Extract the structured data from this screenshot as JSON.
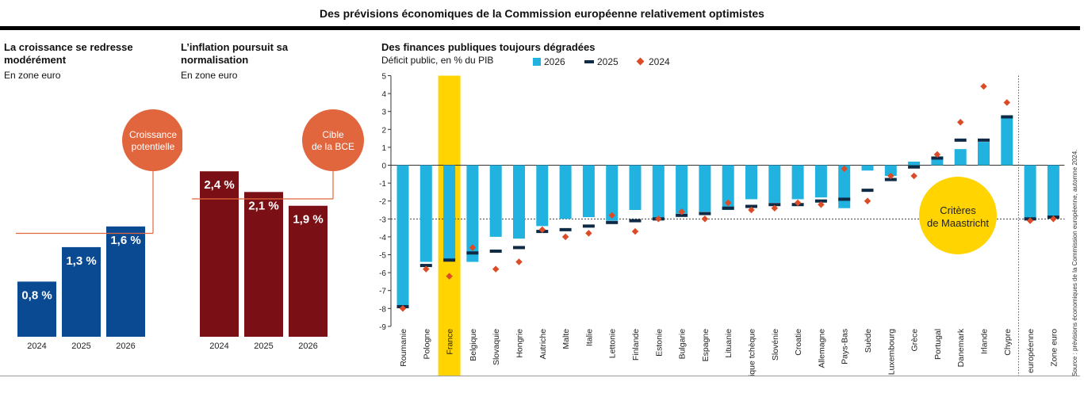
{
  "title": "Des prévisions économiques de la Commission européenne relativement optimistes",
  "source": "Source : prévisions économiques de la Commission européenne, automne 2024.",
  "colors": {
    "growth": "#0a4a93",
    "inflation": "#7a1016",
    "bar2026": "#21b2df",
    "mark2025": "#0e2a45",
    "dot2024": "#dc4b27",
    "callout": "#e2663d",
    "highlight": "#ffd400"
  },
  "panels": [
    {
      "title": "La croissance se redresse modérément",
      "subtitle": "En zone euro",
      "callout": [
        "Croissance",
        "potentielle"
      ],
      "chart_data": {
        "type": "bar",
        "categories": [
          "2024",
          "2025",
          "2026"
        ],
        "values": [
          0.8,
          1.3,
          1.6
        ],
        "labels": [
          "0,8 %",
          "1,3 %",
          "1,6 %"
        ]
      }
    },
    {
      "title": "L’inflation poursuit sa normalisation",
      "subtitle": "En zone euro",
      "callout": [
        "Cible",
        "de la BCE"
      ],
      "chart_data": {
        "type": "bar",
        "categories": [
          "2024",
          "2025",
          "2026"
        ],
        "values": [
          2.4,
          2.1,
          1.9
        ],
        "labels": [
          "2,4 %",
          "2,1 %",
          "1,9 %"
        ]
      }
    },
    {
      "title": "Des finances publiques toujours dégradées",
      "subtitle": "Déficit public, en % du PIB",
      "legend": [
        "2026",
        "2025",
        "2024"
      ],
      "callout": [
        "Critères",
        "de Maastricht"
      ],
      "chart_data": {
        "type": "bar",
        "ylim": [
          -9,
          5
        ],
        "yticks": [
          5,
          4,
          3,
          2,
          1,
          0,
          -1,
          -2,
          -3,
          -4,
          -5,
          -6,
          -7,
          -8,
          -9
        ],
        "threshold": -3,
        "highlight": "France",
        "categories": [
          "Roumanie",
          "Pologne",
          "France",
          "Belgique",
          "Slovaquie",
          "Hongrie",
          "Autriche",
          "Malte",
          "Italie",
          "Lettonie",
          "Finlande",
          "Estonie",
          "Bulgarie",
          "Espagne",
          "Lituanie",
          "République tchèque",
          "Slovénie",
          "Croatie",
          "Allemagne",
          "Pays-Bas",
          "Suède",
          "Luxembourg",
          "Grèce",
          "Portugal",
          "Danemark",
          "Irlande",
          "Chypre",
          "Union européenne",
          "Zone euro"
        ],
        "series": [
          {
            "name": "2026",
            "values": [
              -7.9,
              -5.4,
              -5.3,
              -5.4,
              -4.0,
              -4.1,
              -3.4,
              -3.0,
              -2.9,
              -3.1,
              -2.5,
              -3.0,
              -2.7,
              -2.6,
              -2.5,
              -1.9,
              -2.1,
              -1.9,
              -1.8,
              -2.4,
              -0.3,
              -0.6,
              0.2,
              0.4,
              0.9,
              1.3,
              2.7,
              -3.0,
              -2.9
            ]
          },
          {
            "name": "2025",
            "values": [
              -7.9,
              -5.6,
              -5.3,
              -4.9,
              -4.8,
              -4.6,
              -3.7,
              -3.6,
              -3.4,
              -3.2,
              -3.1,
              -3.0,
              -2.8,
              -2.7,
              -2.4,
              -2.3,
              -2.2,
              -2.2,
              -2.0,
              -1.9,
              -1.4,
              -0.8,
              -0.1,
              0.4,
              1.4,
              1.4,
              2.7,
              -3.0,
              -2.9
            ]
          },
          {
            "name": "2024",
            "values": [
              -8.0,
              -5.8,
              -6.2,
              -4.6,
              -5.8,
              -5.4,
              -3.6,
              -4.0,
              -3.8,
              -2.8,
              -3.7,
              -3.0,
              -2.6,
              -3.0,
              -2.1,
              -2.5,
              -2.4,
              -2.1,
              -2.2,
              -0.2,
              -2.0,
              -0.6,
              -0.6,
              0.6,
              2.4,
              4.4,
              3.5,
              -3.1,
              -3.0
            ]
          }
        ]
      }
    }
  ]
}
